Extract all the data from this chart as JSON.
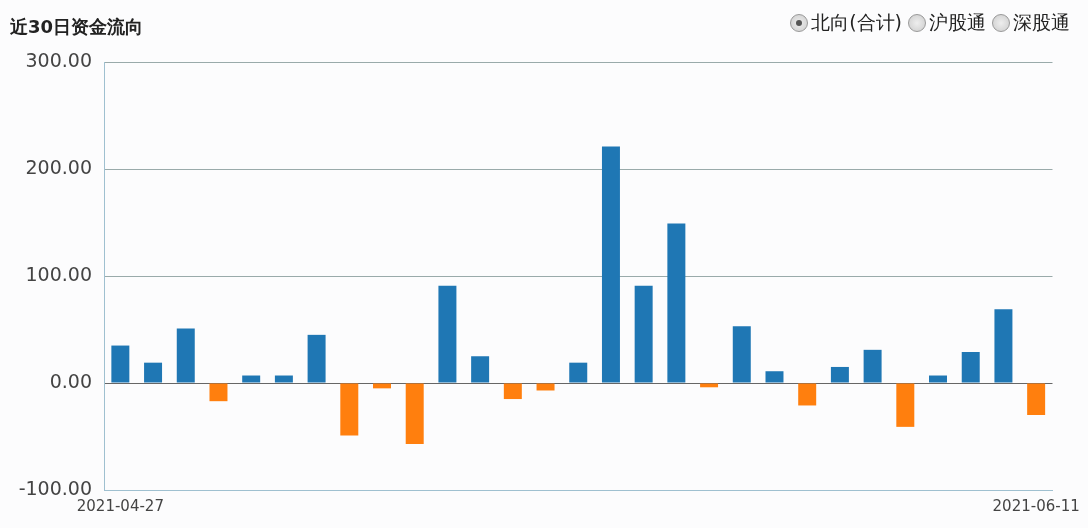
{
  "chart_data": {
    "type": "bar",
    "title": "近30日资金流向",
    "categories": [
      "2021-04-27",
      null,
      null,
      null,
      null,
      null,
      null,
      null,
      null,
      null,
      null,
      null,
      null,
      null,
      null,
      null,
      null,
      null,
      null,
      null,
      null,
      null,
      null,
      null,
      null,
      null,
      null,
      null,
      "2021-06-11"
    ],
    "series": [
      {
        "name": "北向(合计)",
        "values": [
          35,
          19,
          51,
          -17,
          7,
          7,
          45,
          -49,
          -5,
          -57,
          91,
          25,
          -15,
          -7,
          19,
          221,
          91,
          149,
          -4,
          53,
          11,
          -21,
          15,
          31,
          -41,
          7,
          29,
          69,
          -30
        ],
        "colors": [
          "#1f77b4",
          "#1f77b4",
          "#1f77b4",
          "#ff7f0e",
          "#1f77b4",
          "#1f77b4",
          "#1f77b4",
          "#ff7f0e",
          "#ff7f0e",
          "#ff7f0e",
          "#1f77b4",
          "#1f77b4",
          "#ff7f0e",
          "#ff7f0e",
          "#1f77b4",
          "#1f77b4",
          "#1f77b4",
          "#1f77b4",
          "#ff7f0e",
          "#1f77b4",
          "#1f77b4",
          "#ff7f0e",
          "#1f77b4",
          "#1f77b4",
          "#ff7f0e",
          "#1f77b4",
          "#1f77b4",
          "#1f77b4",
          "#ff7f0e"
        ]
      }
    ],
    "ylim": [
      -100,
      300
    ],
    "yticks": [
      {
        "value": -100,
        "label": "-100.00"
      },
      {
        "value": 0,
        "label": "0.00"
      },
      {
        "value": 100,
        "label": "100.00"
      },
      {
        "value": 200,
        "label": "200.00"
      },
      {
        "value": 300,
        "label": "300.00"
      }
    ],
    "grid": "y",
    "legend": "top right",
    "annotations": [
      "沪股通",
      "深股通"
    ]
  }
}
